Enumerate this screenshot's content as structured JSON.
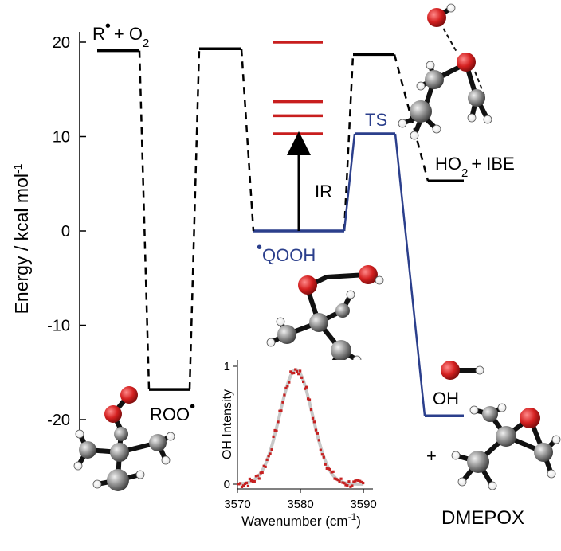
{
  "colors": {
    "black": "#000000",
    "blue": "#2b3f8c",
    "red": "#c81e1e",
    "inset_trace": "#c8c8c8",
    "inset_points": "#c62020",
    "atom_oxygen": "#d42020",
    "atom_carbon": "#8a8a8a",
    "atom_hydrogen": "#ffffff"
  },
  "chart_data": [
    {
      "type": "energy-level-diagram",
      "ylabel": "Energy / kcal mol",
      "ylabel_exponent": "-1",
      "ylim": [
        -24,
        22
      ],
      "yticks": [
        20,
        10,
        0,
        -10,
        -20
      ],
      "levels": [
        {
          "id": "r_o2",
          "energy": 19.1,
          "label_main": "R",
          "label_dot": "•",
          "label_rest": "+ O",
          "label_sub": "2",
          "color": "black"
        },
        {
          "id": "ts1",
          "energy": 19.3,
          "color": "black"
        },
        {
          "id": "roo",
          "energy": -16.8,
          "label_main": "ROO",
          "label_dot": "•",
          "color": "black"
        },
        {
          "id": "qooh",
          "energy": 0.0,
          "label_main": "QOOH",
          "label_dot": "•",
          "color": "blue"
        },
        {
          "id": "ts2",
          "energy": 18.7,
          "color": "black"
        },
        {
          "id": "ho2_ibe",
          "energy": 5.3,
          "label_main": "HO",
          "label_sub": "2",
          "label_rest": "+ IBE",
          "color": "black"
        },
        {
          "id": "ts3",
          "energy": 10.3,
          "label_main": "TS",
          "color": "blue"
        },
        {
          "id": "oh_dmepox",
          "energy": -19.6,
          "label_main": "OH",
          "color": "blue"
        }
      ],
      "ir_levels": [
        10.3,
        12.2,
        13.7,
        20.0
      ],
      "ir_arrow_label": "IR",
      "plus_sign": "+",
      "product_label": "DMEPOX"
    },
    {
      "type": "scatter",
      "xlabel": "Wavenumber (cm",
      "xlabel_exponent": "-1",
      "xlabel_close": ")",
      "ylabel": "OH Intensity",
      "xlim": [
        3570,
        3591
      ],
      "ylim": [
        -0.05,
        1.05
      ],
      "xticks": [
        3570,
        3580,
        3590
      ],
      "yticks": [
        0,
        1
      ],
      "center": 3579.3,
      "width": 2.6,
      "peak": 0.97,
      "x_start": 3570.2,
      "x_end": 3590.0,
      "step": 0.25
    }
  ]
}
